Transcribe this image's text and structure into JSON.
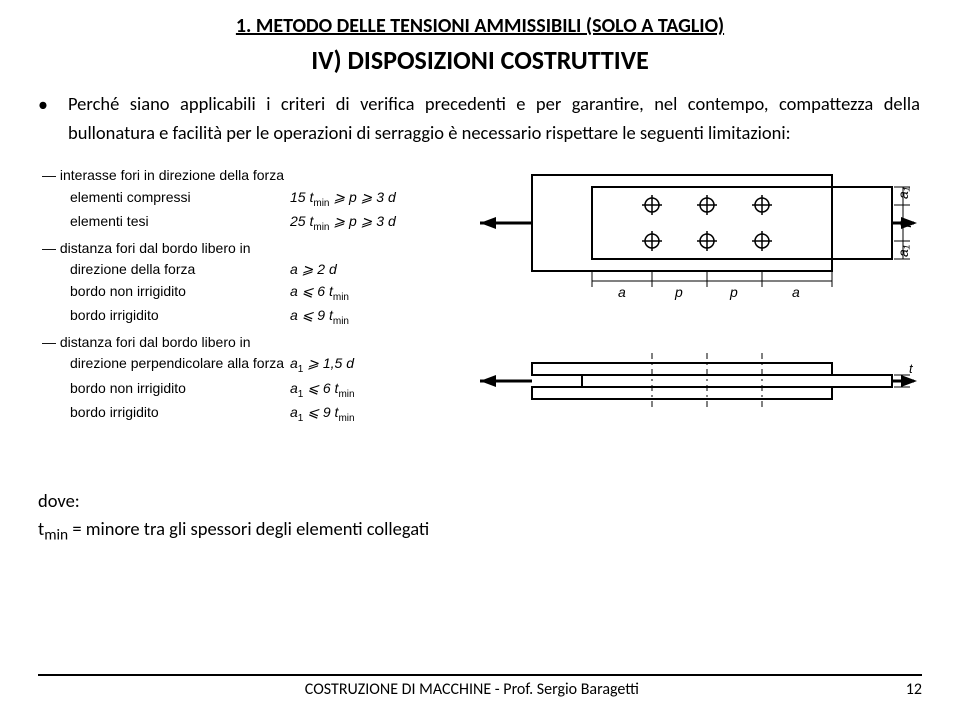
{
  "title": "1. METODO DELLE TENSIONI AMMISSIBILI (SOLO A TAGLIO)",
  "subtitle": "IV) DISPOSIZIONI COSTRUTTIVE",
  "paragraph": "Perché siano applicabili i criteri di verifica precedenti e per garantire, nel contempo, compattezza della bullonatura e facilità per le operazioni di serraggio è necessario rispettare le seguenti limitazioni:",
  "rules": {
    "group1": {
      "heading": "interasse fori in direzione della forza",
      "rows": [
        {
          "label": "elementi compressi",
          "expr": "15 t<sub>min</sub> ⩾ p ⩾ 3 d"
        },
        {
          "label": "elementi tesi",
          "expr": "25 t<sub>min</sub> ⩾ p ⩾ 3 d"
        }
      ]
    },
    "group2": {
      "heading": "distanza fori dal bordo libero in",
      "rows": [
        {
          "label": "direzione della forza",
          "expr": "a ⩾ 2 d"
        },
        {
          "label": "bordo non irrigidito",
          "expr": "a ⩽ 6 t<sub>min</sub>"
        },
        {
          "label": "bordo irrigidito",
          "expr": "a ⩽ 9 t<sub>min</sub>"
        }
      ]
    },
    "group3": {
      "heading": "distanza fori dal bordo libero in",
      "rows": [
        {
          "label": "direzione perpendicolare alla forza",
          "expr": "a<sub>1</sub> ⩾ 1,5 d"
        },
        {
          "label": "bordo non irrigidito",
          "expr": "a<sub>1</sub> ⩽ 6 t<sub>min</sub>"
        },
        {
          "label": "bordo irrigidito",
          "expr": "a<sub>1</sub> ⩽ 9 t<sub>min</sub>"
        }
      ]
    }
  },
  "dove": {
    "heading": "dove:",
    "line": "t<sub>min</sub> = minore tra gli spessori degli elementi collegati"
  },
  "figure": {
    "labels": {
      "a": "a",
      "p": "p",
      "a1": "a₁",
      "ti": "t"
    },
    "colors": {
      "stroke": "#000000",
      "fill": "#ffffff"
    },
    "text_fontsize": 14
  },
  "footer": {
    "text": "COSTRUZIONE DI MACCHINE - Prof. Sergio Baragetti",
    "page": "12"
  }
}
